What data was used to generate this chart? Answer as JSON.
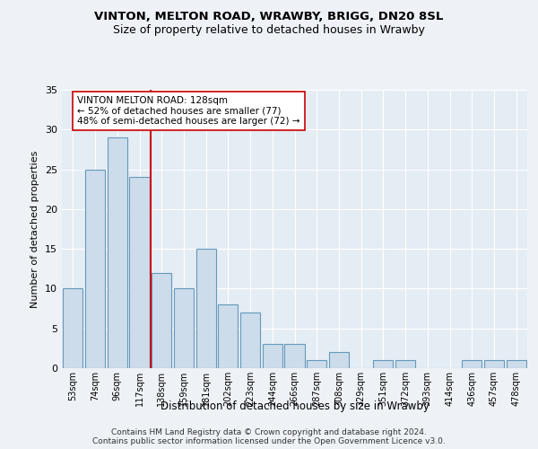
{
  "title1": "VINTON, MELTON ROAD, WRAWBY, BRIGG, DN20 8SL",
  "title2": "Size of property relative to detached houses in Wrawby",
  "xlabel": "Distribution of detached houses by size in Wrawby",
  "ylabel": "Number of detached properties",
  "categories": [
    "53sqm",
    "74sqm",
    "96sqm",
    "117sqm",
    "138sqm",
    "159sqm",
    "181sqm",
    "202sqm",
    "223sqm",
    "244sqm",
    "266sqm",
    "287sqm",
    "308sqm",
    "329sqm",
    "351sqm",
    "372sqm",
    "393sqm",
    "414sqm",
    "436sqm",
    "457sqm",
    "478sqm"
  ],
  "values": [
    10,
    25,
    29,
    24,
    12,
    10,
    15,
    8,
    7,
    3,
    3,
    1,
    2,
    0,
    1,
    1,
    0,
    0,
    1,
    1,
    1
  ],
  "bar_color": "#ccdcea",
  "bar_edge_color": "#6699bb",
  "vline_x": 3.5,
  "vline_color": "#cc0000",
  "annotation_text": "VINTON MELTON ROAD: 128sqm\n← 52% of detached houses are smaller (77)\n48% of semi-detached houses are larger (72) →",
  "annotation_box_color": "#ffffff",
  "annotation_box_edge": "#cc0000",
  "ylim": [
    0,
    35
  ],
  "yticks": [
    0,
    5,
    10,
    15,
    20,
    25,
    30,
    35
  ],
  "footnote1": "Contains HM Land Registry data © Crown copyright and database right 2024.",
  "footnote2": "Contains public sector information licensed under the Open Government Licence v3.0.",
  "bg_color": "#eef2f7",
  "plot_bg_color": "#e4ecf4"
}
